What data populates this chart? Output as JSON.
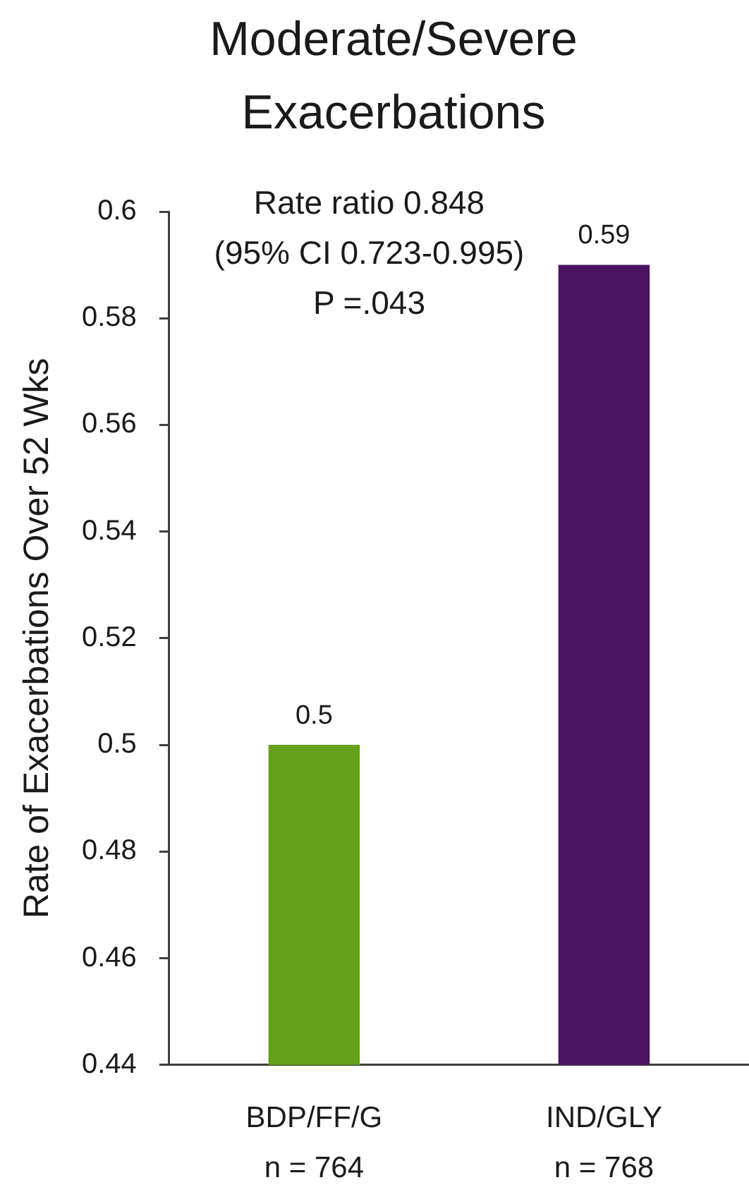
{
  "chart_data": {
    "type": "bar",
    "title": "Moderate/Severe Exacerbations",
    "ylabel": "Rate of Exacerbations Over 52 Wks",
    "categories": [
      "BDP/FF/G\nn = 764",
      "IND/GLY\nn = 768"
    ],
    "values": [
      0.5,
      0.59
    ],
    "colors": [
      "#66a11b",
      "#4b1462"
    ],
    "ylim": [
      0.44,
      0.6
    ],
    "yticks": [
      0.44,
      0.46,
      0.48,
      0.5,
      0.52,
      0.54,
      0.56,
      0.58,
      0.6
    ],
    "data_labels": true,
    "annotations": [
      "Rate ratio 0.848",
      "(95% CI 0.723-0.995)",
      "P =.043"
    ]
  }
}
